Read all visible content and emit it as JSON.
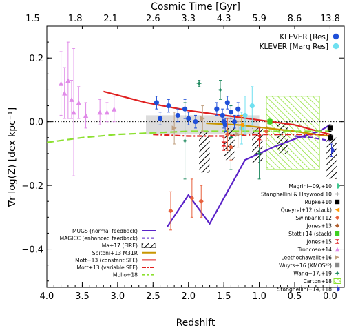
{
  "chart_data": {
    "type": "scatter",
    "title": "",
    "xlabel": "Redshift",
    "ylabel": "∇r log(Z) [dex kpc⁻¹]",
    "top_axis_label": "Cosmic Time [Gyr]",
    "xlim": [
      4.0,
      -0.2
    ],
    "ylim": [
      -0.52,
      0.3
    ],
    "x_ticks": [
      "4.0",
      "3.5",
      "3.0",
      "2.5",
      "2.0",
      "1.5",
      "1.0",
      "0.5",
      "0.0"
    ],
    "x_tick_values": [
      4.0,
      3.5,
      3.0,
      2.5,
      2.0,
      1.5,
      1.0,
      0.5,
      0.0
    ],
    "y_ticks": [
      "−0.4",
      "−0.2",
      "0.0",
      "0.2"
    ],
    "y_tick_values": [
      -0.4,
      -0.2,
      0.0,
      0.2
    ],
    "top_ticks": [
      "1.5",
      "1.8",
      "2.1",
      "2.6",
      "3.3",
      "4.3",
      "5.9",
      "8.6",
      "13.8"
    ],
    "top_tick_redshifts": [
      4.2,
      3.6,
      3.1,
      2.5,
      2.0,
      1.5,
      1.0,
      0.5,
      0.0
    ],
    "legend_top_right": [
      {
        "label": "KLEVER [Res]",
        "color": "#1f4fd8"
      },
      {
        "label": "KLEVER [Marg Res]",
        "color": "#6fe0f0"
      }
    ],
    "legend_models": [
      {
        "label": "MUGS (normal feedback)",
        "color": "#5a22c8",
        "style": "solid"
      },
      {
        "label": "MAGICC (enhanced feedback)",
        "color": "#5a22c8",
        "style": "dash"
      },
      {
        "label": "Ma+17 (FIRE)",
        "color": "#000000",
        "style": "hatch"
      },
      {
        "label": "Spitoni+13 M31R",
        "color": "#c89600",
        "style": "solid"
      },
      {
        "label": "Mott+13 (constant SFE)",
        "color": "#e02020",
        "style": "solid"
      },
      {
        "label": "Mott+13 (variable SFE)",
        "color": "#e02020",
        "style": "dashdot"
      },
      {
        "label": "Mollo+18",
        "color": "#8ce030",
        "style": "dash"
      }
    ],
    "legend_obs": [
      {
        "label": "Magrini+09,+10",
        "color": "#40c890",
        "marker": "halfcircle"
      },
      {
        "label": "Stanghellini & Haywood 10",
        "color": "#9a9a9a",
        "marker": "cross"
      },
      {
        "label": "Rupke+10",
        "color": "#000000",
        "marker": "square"
      },
      {
        "label": "Queyrel+12 (stack)",
        "color": "#ff9a00",
        "marker": "triangle-left"
      },
      {
        "label": "Swinbank+12",
        "color": "#e8603c",
        "marker": "diamond"
      },
      {
        "label": "Jones+13",
        "color": "#b06030",
        "marker": "diamond"
      },
      {
        "label": "Stott+14 (stack)",
        "color": "#40d020",
        "marker": "square"
      },
      {
        "label": "Jones+15",
        "color": "#e02020",
        "marker": "bowtie"
      },
      {
        "label": "Troncoso+14",
        "color": "#e08ae8",
        "marker": "triangle"
      },
      {
        "label": "Leethochawalit+16",
        "color": "#c0a080",
        "marker": "triangle-right"
      },
      {
        "label": "Wuyts+16 (KMOS³ᴰ)",
        "color": "#8a8a8a",
        "marker": "square"
      },
      {
        "label": "Wang+17,+19",
        "color": "#208a60",
        "marker": "star"
      },
      {
        "label": "Carton+18",
        "color": "#8ce030",
        "marker": "hatch"
      },
      {
        "label": "Stanghellini+14,+18",
        "color": "#3040d0",
        "marker": "halfcircle"
      }
    ],
    "series": [
      {
        "name": "MUGS (normal feedback)",
        "kind": "line",
        "color": "#5a22c8",
        "dash": "",
        "x": [
          2.3,
          2.0,
          1.9,
          1.7,
          1.45,
          1.2,
          0.8,
          0.45,
          0.15,
          0.0
        ],
        "y": [
          -0.33,
          -0.23,
          -0.26,
          -0.32,
          -0.22,
          -0.12,
          -0.08,
          -0.05,
          -0.03,
          -0.01
        ]
      },
      {
        "name": "MAGICC (enhanced feedback)",
        "kind": "line",
        "color": "#5a22c8",
        "dash": "6,4",
        "x": [
          0.5,
          0.25,
          0.0
        ],
        "y": [
          -0.045,
          -0.05,
          -0.06
        ]
      },
      {
        "name": "Spitoni+13 M31R",
        "kind": "line",
        "color": "#c89600",
        "dash": "",
        "x": [
          1.75,
          1.3,
          0.9,
          0.5,
          0.2,
          0.0
        ],
        "y": [
          -0.005,
          -0.01,
          -0.02,
          -0.03,
          -0.04,
          -0.045
        ]
      },
      {
        "name": "Mott+13 (constant SFE)",
        "kind": "line",
        "color": "#e02020",
        "dash": "",
        "x": [
          3.2,
          2.6,
          2.0,
          1.5,
          1.0,
          0.5,
          0.0
        ],
        "y": [
          0.095,
          0.06,
          0.035,
          0.02,
          0.005,
          -0.01,
          -0.04
        ]
      },
      {
        "name": "Mott+13 (variable SFE)",
        "kind": "line",
        "color": "#e02020",
        "dash": "8,3,2,3",
        "x": [
          2.5,
          2.0,
          1.5,
          1.0,
          0.5,
          0.0
        ],
        "y": [
          -0.04,
          -0.045,
          -0.045,
          -0.04,
          -0.04,
          -0.04
        ]
      },
      {
        "name": "Mollo+18",
        "kind": "line",
        "color": "#8ce030",
        "dash": "10,5",
        "x": [
          4.0,
          3.5,
          3.0,
          2.5,
          2.0,
          1.5,
          1.0,
          0.5,
          0.0
        ],
        "y": [
          -0.065,
          -0.05,
          -0.04,
          -0.035,
          -0.03,
          -0.03,
          -0.03,
          -0.03,
          -0.03
        ]
      }
    ],
    "points": [
      {
        "set": "Troncoso+14",
        "color": "#e08ae8",
        "marker": "triangle",
        "data": [
          [
            3.8,
            0.12,
            0.1
          ],
          [
            3.75,
            0.09,
            0.08
          ],
          [
            3.7,
            0.13,
            0.12
          ],
          [
            3.65,
            0.07,
            0.06
          ],
          [
            3.62,
            0.03,
            0.2
          ],
          [
            3.55,
            0.06,
            0.05
          ],
          [
            3.45,
            0.02,
            0.04
          ],
          [
            3.25,
            0.03,
            0.04
          ],
          [
            3.15,
            0.03,
            0.03
          ],
          [
            3.05,
            0.04,
            0.04
          ]
        ]
      },
      {
        "set": "KLEVER [Res]",
        "color": "#1f4fd8",
        "marker": "circle",
        "data": [
          [
            2.45,
            0.06,
            0.02
          ],
          [
            2.4,
            0.01,
            0.02
          ],
          [
            2.28,
            0.05,
            0.02
          ],
          [
            2.15,
            0.02,
            0.02
          ],
          [
            2.05,
            0.04,
            0.03
          ],
          [
            2.0,
            0.01,
            0.02
          ],
          [
            1.9,
            0.0,
            0.02
          ],
          [
            1.6,
            0.04,
            0.02
          ],
          [
            1.52,
            0.02,
            0.02
          ],
          [
            1.5,
            0.0,
            0.02
          ],
          [
            1.48,
            -0.01,
            0.02
          ],
          [
            1.45,
            0.06,
            0.02
          ],
          [
            1.4,
            0.03,
            0.02
          ],
          [
            1.35,
            0.0,
            0.02
          ],
          [
            1.3,
            0.04,
            0.02
          ]
        ]
      },
      {
        "set": "KLEVER [Marg Res]",
        "color": "#6fe0f0",
        "marker": "circle",
        "data": [
          [
            1.25,
            -0.02,
            0.05
          ],
          [
            1.2,
            0.02,
            0.06
          ],
          [
            1.1,
            0.05,
            0.06
          ]
        ]
      },
      {
        "set": "Swinbank+12",
        "color": "#e8603c",
        "marker": "diamond",
        "data": [
          [
            2.25,
            -0.28,
            0.06
          ],
          [
            1.95,
            -0.24,
            0.06
          ],
          [
            1.82,
            -0.25,
            0.05
          ],
          [
            1.45,
            -0.04,
            0.05
          ],
          [
            1.4,
            -0.08,
            0.04
          ],
          [
            0.9,
            -0.03,
            0.03
          ]
        ]
      },
      {
        "set": "Wang+17,+19",
        "color": "#208a60",
        "marker": "star",
        "data": [
          [
            2.05,
            -0.06,
            0.12
          ],
          [
            1.85,
            0.12,
            0.01
          ],
          [
            1.55,
            0.1,
            0.03
          ],
          [
            1.4,
            -0.05,
            0.1
          ],
          [
            1.0,
            -0.1,
            0.08
          ]
        ]
      },
      {
        "set": "Stott+14 (stack)",
        "color": "#40d020",
        "marker": "square",
        "data": [
          [
            0.85,
            0.0,
            0.01
          ]
        ]
      },
      {
        "set": "Rupke+10",
        "color": "#000000",
        "marker": "square",
        "data": [
          [
            0.0,
            -0.02,
            0.01
          ],
          [
            -0.01,
            -0.05,
            0.01
          ]
        ]
      },
      {
        "set": "Stanghellini+14,+18",
        "color": "#3040d0",
        "marker": "halfcircle",
        "data": [
          [
            -0.02,
            -0.09,
            0.02
          ]
        ]
      },
      {
        "set": "Queyrel+12 (stack)",
        "color": "#ff9a00",
        "marker": "triangle-left",
        "data": [
          [
            1.25,
            -0.01,
            0.03
          ]
        ]
      },
      {
        "set": "Jones+15",
        "color": "#e02020",
        "marker": "bowtie",
        "data": [
          [
            1.5,
            -0.07,
            0.02
          ],
          [
            1.0,
            -0.05,
            0.03
          ]
        ]
      },
      {
        "set": "Leethochawalit+16",
        "color": "#c0a080",
        "marker": "triangle-right",
        "data": [
          [
            2.2,
            -0.02,
            0.05
          ],
          [
            1.8,
            0.01,
            0.04
          ],
          [
            1.3,
            -0.04,
            0.04
          ]
        ]
      }
    ],
    "shaded_regions": [
      {
        "name": "Wuyts+16 (KMOS³ᴰ)",
        "color": "#bfbfbf",
        "x": [
          2.6,
          1.0
        ],
        "y": [
          -0.04,
          0.02
        ]
      },
      {
        "name": "Carton+18",
        "color": "#8ce030",
        "x": [
          0.9,
          0.15
        ],
        "y": [
          -0.15,
          0.08
        ]
      }
    ],
    "hatched_regions": [
      {
        "name": "Ma+17 (FIRE)",
        "x": [
          1.85,
          1.7
        ],
        "y": [
          -0.16,
          -0.03
        ]
      },
      {
        "name": "Ma+17 (FIRE)",
        "x": [
          1.5,
          1.35
        ],
        "y": [
          -0.12,
          -0.02
        ]
      },
      {
        "name": "Ma+17 (FIRE)",
        "x": [
          1.1,
          0.95
        ],
        "y": [
          -0.13,
          -0.02
        ]
      },
      {
        "name": "Ma+17 (FIRE)",
        "x": [
          0.75,
          0.6
        ],
        "y": [
          -0.1,
          0.0
        ]
      },
      {
        "name": "Ma+17 (FIRE)",
        "x": [
          0.05,
          -0.1
        ],
        "y": [
          -0.18,
          -0.05
        ]
      }
    ],
    "zero_line": true
  }
}
